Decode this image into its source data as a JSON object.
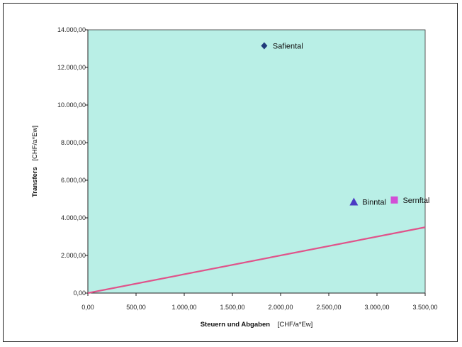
{
  "chart_data": {
    "type": "scatter",
    "title": "",
    "xlabel": "Steuern und Abgaben",
    "xunit": "[CHF/a*Ew]",
    "ylabel": "Transfers",
    "yunit": "[CHF/a*Ew]",
    "xlim": [
      0,
      3500
    ],
    "ylim": [
      0,
      14000
    ],
    "x_ticks": [
      0,
      500,
      1000,
      1500,
      2000,
      2500,
      3000,
      3500
    ],
    "x_tick_labels": [
      "0,00",
      "500,00",
      "1.000,00",
      "1.500,00",
      "2.000,00",
      "2.500,00",
      "3.000,00",
      "3.500,00"
    ],
    "y_ticks": [
      0,
      2000,
      4000,
      6000,
      8000,
      10000,
      12000,
      14000
    ],
    "y_tick_labels": [
      "0,00",
      "2.000,00",
      "4.000,00",
      "6.000,00",
      "8.000,00",
      "10.000,00",
      "12.000,00",
      "14.000,00"
    ],
    "grid": false,
    "points": [
      {
        "label": "Safiental",
        "x": 1830,
        "y": 13150,
        "marker": "diamond",
        "color": "#1f3a7a"
      },
      {
        "label": "Binntal",
        "x": 2760,
        "y": 4850,
        "marker": "triangle",
        "color": "#4b3ac4"
      },
      {
        "label": "Sernftal",
        "x": 3180,
        "y": 4950,
        "marker": "square",
        "color": "#d24fd6"
      }
    ],
    "reference_line": {
      "from": [
        0,
        0
      ],
      "to": [
        3500,
        3500
      ],
      "color": "#e0538a"
    },
    "plot_background": "#b9efe6"
  }
}
